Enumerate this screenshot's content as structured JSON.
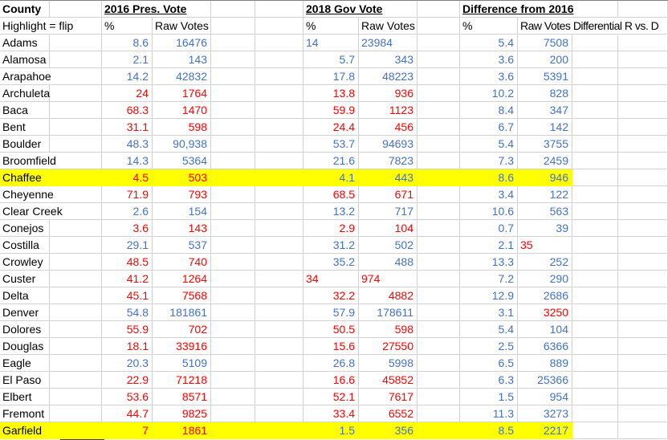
{
  "colors": {
    "blue": "#4472C4",
    "red": "#FF0000",
    "highlight_yellow": "#FFFF00",
    "gridline": "#D2D2D2",
    "top_edge": "#7F7F7F",
    "selection_fragment": "#3F3F3F"
  },
  "header1": {
    "county": "County",
    "pres_2016": "2016 Pres. Vote",
    "gov_2018": "2018 Gov Vote",
    "difference": "Difference from 2016"
  },
  "header2": {
    "note": "Highlight = flip",
    "pct_2016": "%",
    "raw_2016": "Raw Votes",
    "pct_2018": "%",
    "raw_2018": "Raw Votes",
    "pct_diff": "%",
    "raw_diff": "Raw Votes Differential R vs. D"
  },
  "rows": [
    {
      "county": "Adams",
      "highlight": false,
      "cells": [
        {
          "t": "8.6",
          "c": "blue"
        },
        {
          "t": "16476",
          "c": "blue"
        },
        {
          "t": "14",
          "c": "blue",
          "a": "left"
        },
        {
          "t": "23984",
          "c": "blue",
          "a": "left"
        },
        {
          "t": "5.4",
          "c": "blue"
        },
        {
          "t": "7508",
          "c": "blue"
        }
      ]
    },
    {
      "county": "Alamosa",
      "highlight": false,
      "cells": [
        {
          "t": "2.1",
          "c": "blue"
        },
        {
          "t": "143",
          "c": "blue"
        },
        {
          "t": "5.7",
          "c": "blue"
        },
        {
          "t": "343",
          "c": "blue"
        },
        {
          "t": "3.6",
          "c": "blue"
        },
        {
          "t": "200",
          "c": "blue"
        }
      ]
    },
    {
      "county": "Arapahoe",
      "highlight": false,
      "cells": [
        {
          "t": "14.2",
          "c": "blue"
        },
        {
          "t": "42832",
          "c": "blue"
        },
        {
          "t": "17.8",
          "c": "blue"
        },
        {
          "t": "48223",
          "c": "blue"
        },
        {
          "t": "3.6",
          "c": "blue"
        },
        {
          "t": "5391",
          "c": "blue"
        }
      ]
    },
    {
      "county": "Archuleta",
      "highlight": false,
      "cells": [
        {
          "t": "24",
          "c": "red"
        },
        {
          "t": "1764",
          "c": "red"
        },
        {
          "t": "13.8",
          "c": "red"
        },
        {
          "t": "936",
          "c": "red"
        },
        {
          "t": "10.2",
          "c": "blue"
        },
        {
          "t": "828",
          "c": "blue"
        }
      ]
    },
    {
      "county": "Baca",
      "highlight": false,
      "cells": [
        {
          "t": "68.3",
          "c": "red"
        },
        {
          "t": "1470",
          "c": "red"
        },
        {
          "t": "59.9",
          "c": "red"
        },
        {
          "t": "1123",
          "c": "red"
        },
        {
          "t": "8.4",
          "c": "blue"
        },
        {
          "t": "347",
          "c": "blue"
        }
      ]
    },
    {
      "county": "Bent",
      "highlight": false,
      "cells": [
        {
          "t": "31.1",
          "c": "red"
        },
        {
          "t": "598",
          "c": "red"
        },
        {
          "t": "24.4",
          "c": "red"
        },
        {
          "t": "456",
          "c": "red"
        },
        {
          "t": "6.7",
          "c": "blue"
        },
        {
          "t": "142",
          "c": "blue"
        }
      ]
    },
    {
      "county": "Boulder",
      "highlight": false,
      "cells": [
        {
          "t": "48.3",
          "c": "blue"
        },
        {
          "t": "90,938",
          "c": "blue"
        },
        {
          "t": "53.7",
          "c": "blue"
        },
        {
          "t": "94693",
          "c": "blue"
        },
        {
          "t": "5.4",
          "c": "blue"
        },
        {
          "t": "3755",
          "c": "blue"
        }
      ]
    },
    {
      "county": "Broomfield",
      "highlight": false,
      "cells": [
        {
          "t": "14.3",
          "c": "blue"
        },
        {
          "t": "5364",
          "c": "blue"
        },
        {
          "t": "21.6",
          "c": "blue"
        },
        {
          "t": "7823",
          "c": "blue"
        },
        {
          "t": "7.3",
          "c": "blue"
        },
        {
          "t": "2459",
          "c": "blue"
        }
      ]
    },
    {
      "county": "Chaffee",
      "highlight": true,
      "cells": [
        {
          "t": "4.5",
          "c": "red"
        },
        {
          "t": "503",
          "c": "red"
        },
        {
          "t": "4.1",
          "c": "blue"
        },
        {
          "t": "443",
          "c": "blue"
        },
        {
          "t": "8.6",
          "c": "blue"
        },
        {
          "t": "946",
          "c": "blue"
        }
      ]
    },
    {
      "county": "Cheyenne",
      "highlight": false,
      "cells": [
        {
          "t": "71.9",
          "c": "red"
        },
        {
          "t": "793",
          "c": "red"
        },
        {
          "t": "68.5",
          "c": "red"
        },
        {
          "t": "671",
          "c": "red"
        },
        {
          "t": "3.4",
          "c": "blue"
        },
        {
          "t": "122",
          "c": "blue"
        }
      ]
    },
    {
      "county": "Clear Creek",
      "highlight": false,
      "cells": [
        {
          "t": "2.6",
          "c": "blue"
        },
        {
          "t": "154",
          "c": "blue"
        },
        {
          "t": "13.2",
          "c": "blue"
        },
        {
          "t": "717",
          "c": "blue"
        },
        {
          "t": "10.6",
          "c": "blue"
        },
        {
          "t": "563",
          "c": "blue"
        }
      ]
    },
    {
      "county": "Conejos",
      "highlight": false,
      "cells": [
        {
          "t": "3.6",
          "c": "red"
        },
        {
          "t": "143",
          "c": "red"
        },
        {
          "t": "2.9",
          "c": "red"
        },
        {
          "t": "104",
          "c": "red"
        },
        {
          "t": "0.7",
          "c": "blue"
        },
        {
          "t": "39",
          "c": "blue"
        }
      ]
    },
    {
      "county": "Costilla",
      "highlight": false,
      "cells": [
        {
          "t": "29.1",
          "c": "blue"
        },
        {
          "t": "537",
          "c": "blue"
        },
        {
          "t": "31.2",
          "c": "blue"
        },
        {
          "t": "502",
          "c": "blue"
        },
        {
          "t": "2.1",
          "c": "blue"
        },
        {
          "t": "35",
          "c": "red",
          "a": "left"
        }
      ]
    },
    {
      "county": "Crowley",
      "highlight": false,
      "cells": [
        {
          "t": "48.5",
          "c": "red"
        },
        {
          "t": "740",
          "c": "red"
        },
        {
          "t": "35.2",
          "c": "blue"
        },
        {
          "t": "488",
          "c": "blue"
        },
        {
          "t": "13.3",
          "c": "blue"
        },
        {
          "t": "252",
          "c": "blue"
        }
      ]
    },
    {
      "county": "Custer",
      "highlight": false,
      "cells": [
        {
          "t": "41.2",
          "c": "red"
        },
        {
          "t": "1264",
          "c": "red"
        },
        {
          "t": "34",
          "c": "red",
          "a": "left"
        },
        {
          "t": "974",
          "c": "red",
          "a": "left"
        },
        {
          "t": "7.2",
          "c": "blue"
        },
        {
          "t": "290",
          "c": "blue"
        }
      ]
    },
    {
      "county": "Delta",
      "highlight": false,
      "cells": [
        {
          "t": "45.1",
          "c": "red"
        },
        {
          "t": "7568",
          "c": "red"
        },
        {
          "t": "32.2",
          "c": "red"
        },
        {
          "t": "4882",
          "c": "red"
        },
        {
          "t": "12.9",
          "c": "blue"
        },
        {
          "t": "2686",
          "c": "blue"
        }
      ]
    },
    {
      "county": "Denver",
      "highlight": false,
      "cells": [
        {
          "t": "54.8",
          "c": "blue"
        },
        {
          "t": "181861",
          "c": "blue"
        },
        {
          "t": "57.9",
          "c": "blue"
        },
        {
          "t": "178611",
          "c": "blue"
        },
        {
          "t": "3.1",
          "c": "blue"
        },
        {
          "t": "3250",
          "c": "red"
        }
      ]
    },
    {
      "county": "Dolores",
      "highlight": false,
      "cells": [
        {
          "t": "55.9",
          "c": "red"
        },
        {
          "t": "702",
          "c": "red"
        },
        {
          "t": "50.5",
          "c": "red"
        },
        {
          "t": "598",
          "c": "red"
        },
        {
          "t": "5.4",
          "c": "blue"
        },
        {
          "t": "104",
          "c": "blue"
        }
      ]
    },
    {
      "county": "Douglas",
      "highlight": false,
      "cells": [
        {
          "t": "18.1",
          "c": "red"
        },
        {
          "t": "33916",
          "c": "red"
        },
        {
          "t": "15.6",
          "c": "red"
        },
        {
          "t": "27550",
          "c": "red"
        },
        {
          "t": "2.5",
          "c": "blue"
        },
        {
          "t": "6366",
          "c": "blue"
        }
      ]
    },
    {
      "county": "Eagle",
      "highlight": false,
      "cells": [
        {
          "t": "20.3",
          "c": "blue"
        },
        {
          "t": "5109",
          "c": "blue"
        },
        {
          "t": "26.8",
          "c": "blue"
        },
        {
          "t": "5998",
          "c": "blue"
        },
        {
          "t": "6.5",
          "c": "blue"
        },
        {
          "t": "889",
          "c": "blue"
        }
      ]
    },
    {
      "county": "El Paso",
      "highlight": false,
      "cells": [
        {
          "t": "22.9",
          "c": "red"
        },
        {
          "t": "71218",
          "c": "red"
        },
        {
          "t": "16.6",
          "c": "red"
        },
        {
          "t": "45852",
          "c": "red"
        },
        {
          "t": "6.3",
          "c": "blue"
        },
        {
          "t": "25366",
          "c": "blue"
        }
      ]
    },
    {
      "county": "Elbert",
      "highlight": false,
      "cells": [
        {
          "t": "53.6",
          "c": "red"
        },
        {
          "t": "8571",
          "c": "red"
        },
        {
          "t": "52.1",
          "c": "red"
        },
        {
          "t": "7617",
          "c": "red"
        },
        {
          "t": "1.5",
          "c": "blue"
        },
        {
          "t": "954",
          "c": "blue"
        }
      ]
    },
    {
      "county": "Fremont",
      "highlight": false,
      "cells": [
        {
          "t": "44.7",
          "c": "red"
        },
        {
          "t": "9825",
          "c": "red"
        },
        {
          "t": "33.4",
          "c": "red"
        },
        {
          "t": "6552",
          "c": "red"
        },
        {
          "t": "11.3",
          "c": "blue"
        },
        {
          "t": "3273",
          "c": "blue"
        }
      ]
    },
    {
      "county": "Garfield",
      "highlight": true,
      "cells": [
        {
          "t": "7",
          "c": "red"
        },
        {
          "t": "1861",
          "c": "red"
        },
        {
          "t": "1.5",
          "c": "blue"
        },
        {
          "t": "356",
          "c": "blue"
        },
        {
          "t": "8.5",
          "c": "blue"
        },
        {
          "t": "2217",
          "c": "blue"
        }
      ]
    }
  ]
}
